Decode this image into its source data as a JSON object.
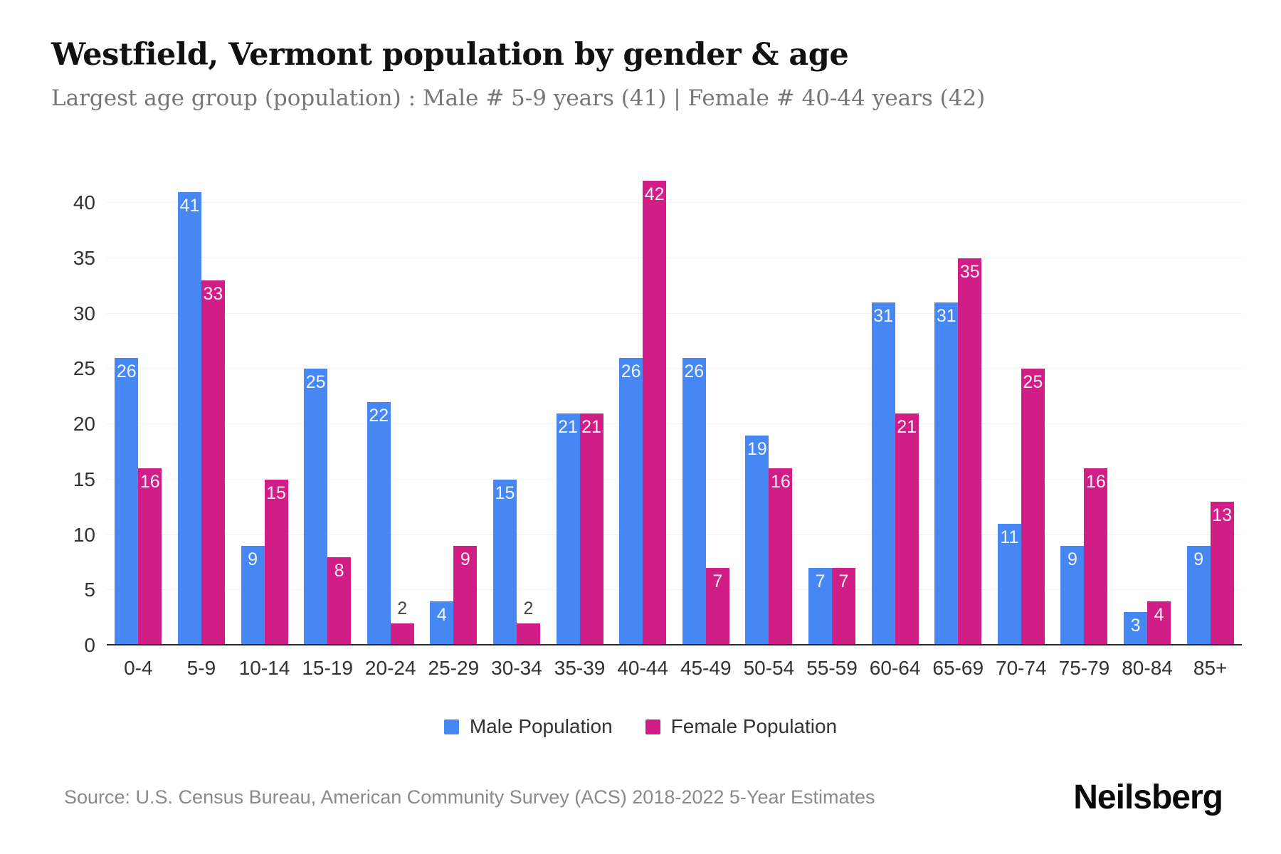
{
  "header": {
    "title": "Westfield, Vermont population by gender & age",
    "subtitle": "Largest age group (population) : Male # 5-9 years (41) | Female # 40-44 years (42)"
  },
  "chart_data": {
    "type": "bar",
    "grouped": true,
    "title": "Westfield, Vermont population by gender & age",
    "categories": [
      "0-4",
      "5-9",
      "10-14",
      "15-19",
      "20-24",
      "25-29",
      "30-34",
      "35-39",
      "40-44",
      "45-49",
      "50-54",
      "55-59",
      "60-64",
      "65-69",
      "70-74",
      "75-79",
      "80-84",
      "85+"
    ],
    "series": [
      {
        "name": "Male Population",
        "color": "#4787f3",
        "values": [
          26,
          41,
          9,
          25,
          22,
          4,
          15,
          21,
          26,
          26,
          19,
          7,
          31,
          31,
          11,
          9,
          3,
          9
        ]
      },
      {
        "name": "Female Population",
        "color": "#d11d86",
        "values": [
          16,
          33,
          15,
          8,
          2,
          9,
          2,
          21,
          42,
          7,
          16,
          7,
          21,
          35,
          25,
          16,
          4,
          13
        ]
      }
    ],
    "xlabel": "",
    "ylabel": "",
    "ylim": [
      0,
      42
    ],
    "yticks": [
      0,
      5,
      10,
      15,
      20,
      25,
      30,
      35,
      40
    ],
    "grid": "horizontal",
    "legend_position": "bottom",
    "value_labels": "inside-top, values of 2 or less shown above bar in dark text",
    "outside_label_max": 2
  },
  "footer": {
    "source": "Source: U.S. Census Bureau, American Community Survey (ACS) 2018-2022 5-Year Estimates",
    "brand": "Neilsberg"
  }
}
